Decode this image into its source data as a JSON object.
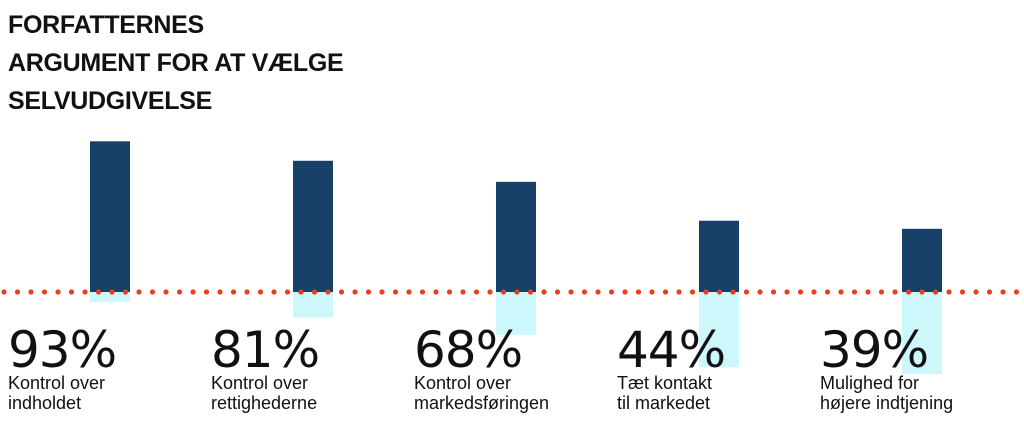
{
  "title_lines": [
    "FORFATTERNES",
    "ARGUMENT FOR AT VÆLGE",
    "SELVUDGIVELSE"
  ],
  "colors": {
    "bar": "#164067",
    "mirror": "#ccf8fb",
    "baseline": "#e8401c",
    "text": "#111111"
  },
  "chart_data": {
    "type": "bar",
    "title": "FORFATTERNES ARGUMENT FOR AT VÆLGE SELVUDGIVELSE",
    "categories": [
      "Kontrol over indholdet",
      "Kontrol over rettighederne",
      "Kontrol over markedsføringen",
      "Tæt kontakt til markedet",
      "Mulighed for højere indtjening"
    ],
    "values": [
      93,
      81,
      68,
      44,
      39
    ],
    "value_labels": [
      "93%",
      "81%",
      "68%",
      "44%",
      "39%"
    ],
    "caption_lines": [
      [
        "Kontrol over",
        "indholdet"
      ],
      [
        "Kontrol over",
        "rettighederne"
      ],
      [
        "Kontrol over",
        "markedsføringen"
      ],
      [
        "Tæt kontakt",
        "til markedet"
      ],
      [
        "Mulighed for",
        "højere indtjening"
      ]
    ],
    "unit": "%",
    "ylim": [
      0,
      100
    ],
    "grid": false,
    "legend": "none"
  }
}
